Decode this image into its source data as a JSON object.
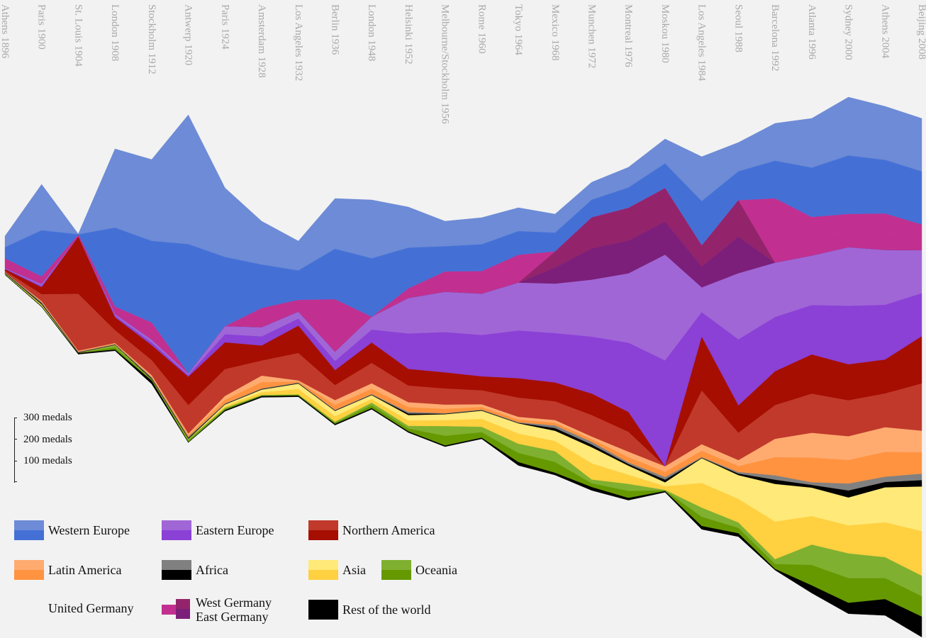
{
  "chart_data": {
    "type": "area",
    "subtype": "streamgraph",
    "categories": [
      "Athens 1896",
      "Paris 1900",
      "St. Louis 1904",
      "London 1908",
      "Stockholm 1912",
      "Antwerp 1920",
      "Paris 1924",
      "Amsterdam 1928",
      "Los Angeles 1932",
      "Berlin 1936",
      "London 1948",
      "Helsinki 1952",
      "Melbourne/Stockholm 1956",
      "Rome 1960",
      "Tokyo 1964",
      "Mexico 1968",
      "Munchen 1972",
      "Montreal 1976",
      "Moskou 1980",
      "Los Angeles 1984",
      "Seoul 1988",
      "Barcelona 1992",
      "Atlanta 1996",
      "Sydney 2000",
      "Athens 2004",
      "Beijing 2008"
    ],
    "scale_bar": {
      "unit": "medals",
      "labels": [
        "300 medals",
        "200 medals",
        "100 medals"
      ]
    },
    "series": [
      {
        "name": "Western Europe",
        "colors": [
          "#6d8bd6",
          "#4470d6"
        ],
        "values": [
          105,
          430,
          5,
          735,
          760,
          1205,
          645,
          405,
          275,
          470,
          545,
          380,
          235,
          250,
          220,
          175,
          165,
          190,
          230,
          415,
          270,
          350,
          460,
          545,
          500,
          495
        ]
      },
      {
        "name": "United Germany",
        "colors": [
          "#c13090",
          "#c13090"
        ],
        "values": [
          45,
          35,
          10,
          35,
          80,
          0,
          0,
          90,
          55,
          245,
          0,
          45,
          95,
          105,
          130,
          0,
          0,
          0,
          0,
          0,
          0,
          300,
          180,
          155,
          170,
          120
        ]
      },
      {
        "name": "West Germany / East Germany",
        "colors": [
          "#93246b",
          "#7b1f7a"
        ],
        "values": [
          0,
          0,
          0,
          0,
          0,
          0,
          0,
          0,
          0,
          0,
          0,
          0,
          0,
          0,
          0,
          150,
          290,
          305,
          310,
          195,
          340,
          0,
          0,
          0,
          0,
          0
        ]
      },
      {
        "name": "Eastern Europe",
        "colors": [
          "#a066d6",
          "#8b40d6"
        ],
        "values": [
          5,
          15,
          0,
          15,
          25,
          15,
          75,
          85,
          65,
          85,
          120,
          330,
          375,
          385,
          445,
          460,
          530,
          645,
          985,
          230,
          615,
          505,
          460,
          545,
          510,
          400
        ]
      },
      {
        "name": "Northern America",
        "colors": [
          "#a50e00",
          "#c0392b"
        ],
        "values": [
          15,
          65,
          530,
          120,
          140,
          265,
          250,
          140,
          255,
          140,
          190,
          155,
          150,
          130,
          180,
          175,
          200,
          185,
          0,
          500,
          255,
          315,
          365,
          335,
          315,
          440
        ]
      },
      {
        "name": "Latin America",
        "colors": [
          "#ffab70",
          "#ff9340"
        ],
        "values": [
          0,
          5,
          5,
          5,
          10,
          15,
          35,
          60,
          10,
          45,
          50,
          45,
          40,
          25,
          25,
          25,
          25,
          50,
          50,
          60,
          55,
          170,
          230,
          220,
          230,
          200
        ]
      },
      {
        "name": "Africa",
        "colors": [
          "#808080",
          "#000000"
        ],
        "values": [
          5,
          10,
          5,
          5,
          10,
          10,
          5,
          5,
          5,
          5,
          5,
          15,
          5,
          5,
          5,
          25,
          25,
          15,
          25,
          5,
          15,
          40,
          25,
          65,
          50,
          60
        ]
      },
      {
        "name": "Asia",
        "colors": [
          "#ffe978",
          "#ffd040"
        ],
        "values": [
          0,
          5,
          0,
          0,
          0,
          0,
          15,
          25,
          50,
          50,
          35,
          50,
          55,
          75,
          95,
          95,
          150,
          85,
          35,
          230,
          220,
          350,
          265,
          260,
          325,
          415
        ]
      },
      {
        "name": "Oceania",
        "colors": [
          "#80b030",
          "#669900"
        ],
        "values": [
          5,
          5,
          0,
          20,
          5,
          15,
          10,
          5,
          5,
          10,
          25,
          25,
          90,
          50,
          85,
          100,
          35,
          65,
          5,
          85,
          50,
          45,
          190,
          230,
          195,
          190
        ]
      },
      {
        "name": "Rest of the world",
        "colors": [
          "#000000",
          "#000000"
        ],
        "values": [
          0,
          0,
          5,
          5,
          15,
          0,
          5,
          5,
          5,
          5,
          5,
          5,
          5,
          5,
          15,
          10,
          15,
          10,
          5,
          15,
          15,
          5,
          35,
          50,
          75,
          95
        ]
      }
    ]
  },
  "legend": [
    {
      "label": "Western Europe",
      "colors": [
        "#6d8bd6",
        "#4470d6"
      ]
    },
    {
      "label": "Eastern Europe",
      "colors": [
        "#a066d6",
        "#8b40d6"
      ]
    },
    {
      "label": "Northern America",
      "colors": [
        "#c0392b",
        "#a50e00"
      ]
    },
    {
      "label": "Latin America",
      "colors": [
        "#ffab70",
        "#ff9340"
      ]
    },
    {
      "label": "Africa",
      "colors": [
        "#808080",
        "#000000"
      ]
    },
    {
      "label": "Asia",
      "colors": [
        "#ffe978",
        "#ffd040"
      ]
    },
    {
      "label": "Oceania",
      "colors": [
        "#80b030",
        "#669900"
      ]
    },
    {
      "label": "United Germany",
      "colors": [
        "#c13090"
      ]
    },
    {
      "label": "West Germany",
      "colors": [
        "#93246b"
      ]
    },
    {
      "label": "East Germany",
      "colors": [
        "#7b1f7a"
      ]
    },
    {
      "label": "Rest of the world",
      "colors": [
        "#000000"
      ]
    }
  ]
}
